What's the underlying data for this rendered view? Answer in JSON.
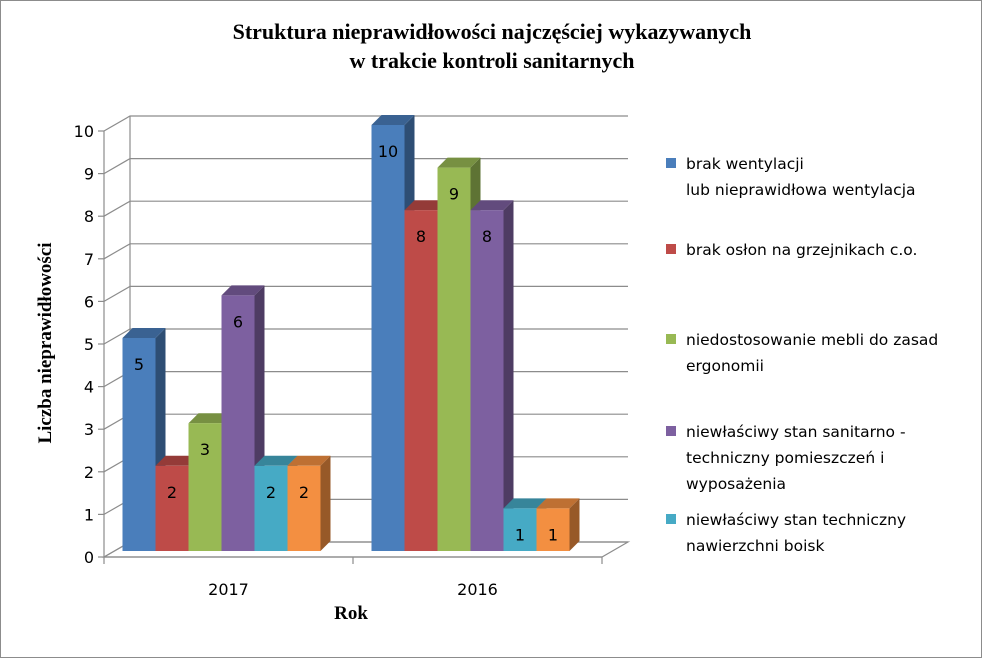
{
  "chart_data": {
    "type": "bar",
    "title": "Struktura nieprawidłowości najczęściej wykazywanych",
    "subtitle": "w trakcie kontroli sanitarnych",
    "xlabel": "Rok",
    "ylabel": "Liczba nieprawidłowości",
    "categories": [
      "2017",
      "2016"
    ],
    "ylim": [
      0,
      10
    ],
    "yticks": [
      "0",
      "1",
      "2",
      "3",
      "4",
      "5",
      "6",
      "7",
      "8",
      "9",
      "10"
    ],
    "grid": true,
    "legend_position": "right",
    "style": "3d-clustered-column",
    "series": [
      {
        "name": "brak wentylacji\nlub nieprawidłowa wentylacja",
        "color": "#4a7ebb",
        "values": [
          5,
          10
        ]
      },
      {
        "name": "brak osłon na grzejnikach c.o.",
        "color": "#be4b48",
        "values": [
          2,
          8
        ]
      },
      {
        "name": "niedostosowanie mebli do zasad\nergonomii",
        "color": "#98b954",
        "values": [
          3,
          9
        ]
      },
      {
        "name": "niewłaściwy stan sanitarno -\ntechniczny pomieszczeń i\nwyposażenia",
        "color": "#7d60a0",
        "values": [
          6,
          8
        ]
      },
      {
        "name": "niewłaściwy stan techniczny\nnawierzchni boisk",
        "color": "#46aac5",
        "values": [
          2,
          1
        ]
      },
      {
        "name": "",
        "color": "#f38f41",
        "values": [
          2,
          1
        ]
      }
    ]
  }
}
